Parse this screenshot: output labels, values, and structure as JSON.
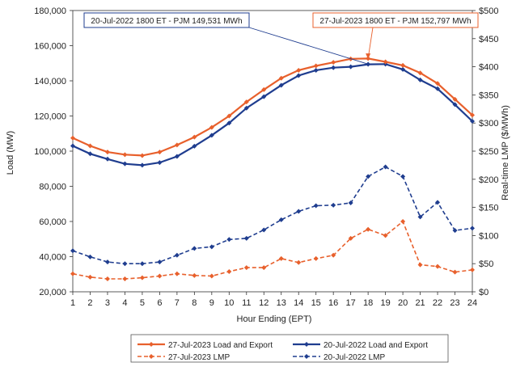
{
  "chart_data": {
    "type": "line",
    "xlabel": "Hour Ending (EPT)",
    "ylabel_left": "Load (MW)",
    "ylabel_right": "Real-time LMP ($/MWh)",
    "x": [
      1,
      2,
      3,
      4,
      5,
      6,
      7,
      8,
      9,
      10,
      11,
      12,
      13,
      14,
      15,
      16,
      17,
      18,
      19,
      20,
      21,
      22,
      23,
      24
    ],
    "ylim_left": [
      20000,
      180000
    ],
    "ylim_right": [
      0,
      500
    ],
    "yticks_left": [
      "20,000",
      "40,000",
      "60,000",
      "80,000",
      "100,000",
      "120,000",
      "140,000",
      "160,000",
      "180,000"
    ],
    "yticks_right": [
      "$0",
      "$50",
      "$100",
      "$150",
      "$200",
      "$250",
      "$300",
      "$350",
      "$400",
      "$450",
      "$500"
    ],
    "grid": false,
    "legend_position": "bottom",
    "series": [
      {
        "name": "27-Jul-2023 Load and Export",
        "axis": "left",
        "color": "#e8602c",
        "dash": "solid",
        "values": [
          107500,
          103000,
          99500,
          98000,
          97500,
          99500,
          103500,
          108000,
          113500,
          120000,
          128000,
          135000,
          141500,
          146000,
          148500,
          150500,
          152500,
          152700,
          150800,
          148800,
          144500,
          138500,
          129500,
          120500
        ]
      },
      {
        "name": "20-Jul-2022 Load and Export",
        "axis": "left",
        "color": "#1f3d8f",
        "dash": "solid",
        "values": [
          103000,
          98500,
          95500,
          92800,
          92000,
          93500,
          97000,
          102800,
          109000,
          116000,
          124500,
          131000,
          137500,
          143000,
          146000,
          147500,
          148000,
          149400,
          149500,
          146500,
          140500,
          135500,
          126500,
          117000
        ]
      },
      {
        "name": "27-Jul-2023 LMP",
        "axis": "right",
        "color": "#e8602c",
        "dash": "dashed",
        "values": [
          32,
          26,
          23,
          23,
          25,
          28,
          32,
          29,
          28,
          36,
          43,
          43,
          59,
          52,
          59,
          65,
          95,
          111,
          100,
          125,
          48,
          45,
          35,
          39
        ]
      },
      {
        "name": "20-Jul-2022 LMP",
        "axis": "right",
        "color": "#1f3d8f",
        "dash": "dashed",
        "values": [
          73,
          62,
          53,
          50,
          50,
          53,
          65,
          77,
          80,
          93,
          95,
          110,
          128,
          143,
          153,
          154,
          158,
          205,
          222,
          205,
          133,
          159,
          109,
          113
        ]
      }
    ],
    "annotations": [
      {
        "text": "20-Jul-2022 1800 ET - PJM 149,531 MWh",
        "color": "#1f3d8f",
        "target_x": 18,
        "target_y": 149531
      },
      {
        "text": "27-Jul-2023 1800 ET - PJM 152,797 MWh",
        "color": "#e8602c",
        "target_x": 18,
        "target_y": 152797
      }
    ]
  }
}
